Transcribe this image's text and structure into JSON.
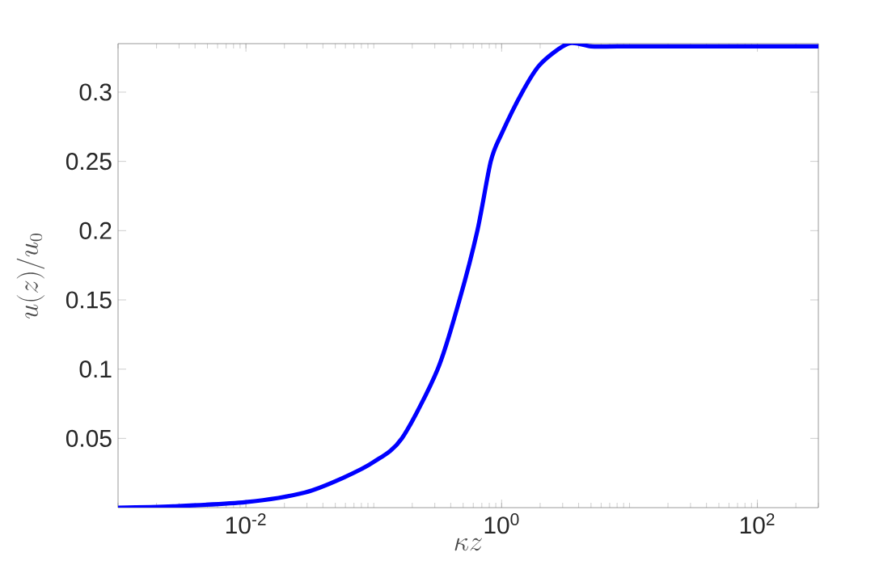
{
  "chart_data": {
    "type": "line",
    "xlabel": "\\kappa z",
    "ylabel": "u(z)/u_0",
    "log": "x",
    "xlim": [
      0.001,
      300
    ],
    "ylim": [
      0,
      0.335
    ],
    "xticks": [
      {
        "value": 0.01,
        "label": "10$^{-2}$"
      },
      {
        "value": 1,
        "label": "10$^{0}$"
      },
      {
        "value": 100,
        "label": "10$^{2}$"
      }
    ],
    "yticks": [
      0.05,
      0.1,
      0.15,
      0.2,
      0.25,
      0.3
    ],
    "x": [
      0.001,
      0.0027,
      0.01,
      0.029,
      0.059,
      0.1,
      0.166,
      0.316,
      0.468,
      0.646,
      0.822,
      1,
      1.45,
      2,
      3.31,
      5,
      8.3,
      30,
      300
    ],
    "series": [
      {
        "color": "#0000ff",
        "values": [
          0,
          0.001,
          0.004,
          0.011,
          0.022,
          0.033,
          0.05,
          0.1,
          0.15,
          0.2,
          0.25,
          0.27,
          0.3,
          0.32,
          0.335,
          0.333,
          0.333,
          0.333,
          0.333
        ]
      }
    ],
    "grid": false,
    "marker": "none",
    "line_style": "solid"
  }
}
